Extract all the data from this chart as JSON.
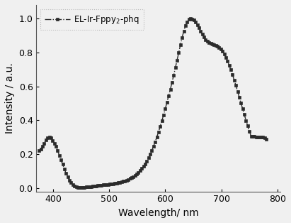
{
  "x": [
    375,
    378,
    381,
    384,
    387,
    390,
    393,
    396,
    399,
    402,
    405,
    408,
    411,
    414,
    417,
    420,
    423,
    426,
    429,
    432,
    435,
    438,
    441,
    444,
    447,
    450,
    453,
    456,
    459,
    462,
    465,
    468,
    471,
    474,
    477,
    480,
    483,
    486,
    489,
    492,
    495,
    498,
    501,
    504,
    507,
    510,
    513,
    516,
    519,
    522,
    525,
    528,
    531,
    534,
    537,
    540,
    543,
    546,
    549,
    552,
    555,
    558,
    561,
    564,
    567,
    570,
    573,
    576,
    579,
    582,
    585,
    588,
    591,
    594,
    597,
    600,
    603,
    606,
    609,
    612,
    615,
    618,
    621,
    624,
    627,
    630,
    633,
    636,
    639,
    642,
    645,
    648,
    651,
    654,
    657,
    660,
    663,
    666,
    669,
    672,
    675,
    678,
    681,
    684,
    687,
    690,
    693,
    696,
    699,
    702,
    705,
    708,
    711,
    714,
    717,
    720,
    723,
    726,
    729,
    732,
    735,
    738,
    741,
    744,
    747,
    750,
    753,
    756,
    759,
    762,
    765,
    768,
    771,
    774,
    777,
    780
  ],
  "y": [
    0.22,
    0.23,
    0.245,
    0.265,
    0.285,
    0.295,
    0.3,
    0.295,
    0.282,
    0.265,
    0.245,
    0.22,
    0.193,
    0.167,
    0.14,
    0.112,
    0.087,
    0.065,
    0.047,
    0.032,
    0.021,
    0.013,
    0.008,
    0.005,
    0.004,
    0.003,
    0.004,
    0.005,
    0.006,
    0.007,
    0.008,
    0.009,
    0.01,
    0.011,
    0.013,
    0.015,
    0.016,
    0.018,
    0.019,
    0.02,
    0.021,
    0.022,
    0.023,
    0.025,
    0.026,
    0.028,
    0.03,
    0.032,
    0.034,
    0.037,
    0.04,
    0.043,
    0.047,
    0.051,
    0.056,
    0.062,
    0.068,
    0.075,
    0.083,
    0.092,
    0.103,
    0.115,
    0.128,
    0.143,
    0.16,
    0.178,
    0.199,
    0.222,
    0.247,
    0.273,
    0.302,
    0.332,
    0.364,
    0.397,
    0.432,
    0.468,
    0.506,
    0.544,
    0.583,
    0.623,
    0.665,
    0.71,
    0.755,
    0.8,
    0.845,
    0.888,
    0.925,
    0.958,
    0.98,
    0.995,
    1.0,
    0.998,
    0.99,
    0.978,
    0.962,
    0.944,
    0.925,
    0.906,
    0.89,
    0.876,
    0.866,
    0.858,
    0.853,
    0.849,
    0.846,
    0.842,
    0.837,
    0.829,
    0.819,
    0.806,
    0.79,
    0.771,
    0.749,
    0.724,
    0.697,
    0.668,
    0.637,
    0.605,
    0.571,
    0.537,
    0.502,
    0.467,
    0.433,
    0.399,
    0.366,
    0.335,
    0.307,
    0.305,
    0.304,
    0.303,
    0.302,
    0.301,
    0.3,
    0.299,
    0.295,
    0.29
  ],
  "line_color": "#2b2b2b",
  "line_style": "-.",
  "marker": "s",
  "markersize": 2.5,
  "linewidth": 1.0,
  "xlabel": "Wavelength/ nm",
  "ylabel": "Intensity / a.u.",
  "xlim": [
    370,
    805
  ],
  "ylim": [
    -0.02,
    1.08
  ],
  "xticks": [
    400,
    500,
    600,
    700,
    800
  ],
  "yticks": [
    0.0,
    0.2,
    0.4,
    0.6,
    0.8,
    1.0
  ],
  "legend_label": "EL-Ir-Fppy$_2$-phq",
  "legend_fontsize": 8.5,
  "axis_fontsize": 10,
  "tick_fontsize": 9,
  "background_color": "#f0f0f0",
  "legend_edgecolor": "#bbbbbb",
  "legend_fancybox": false,
  "figsize": [
    4.11,
    3.14
  ],
  "dpi": 100
}
